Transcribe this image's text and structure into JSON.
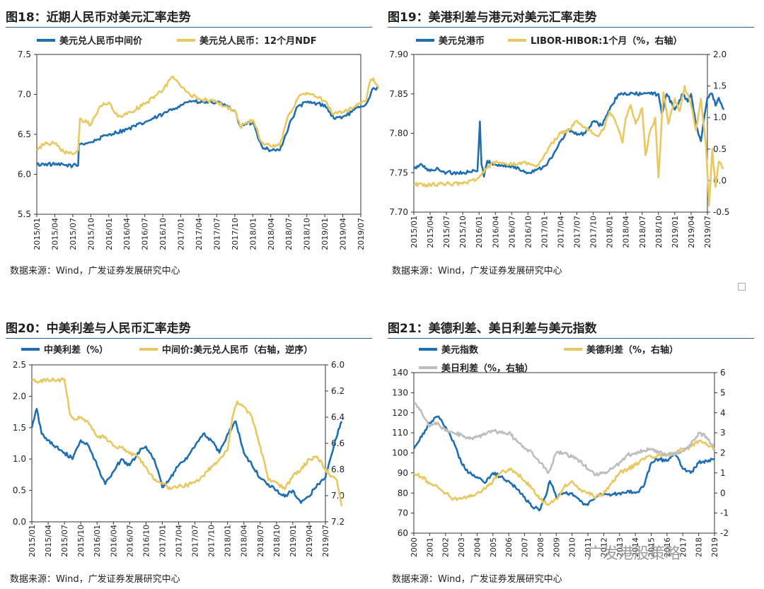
{
  "colors": {
    "blue": "#1f6fb0",
    "yellow": "#e8c860",
    "gray": "#bdbdbd",
    "rule": "#2a5f8f"
  },
  "watermark": "广发港股策略",
  "charts": [
    {
      "id": "fig18",
      "title": "图18：近期人民币对美元汇率走势",
      "source": "数据来源：Wind，广发证券发展研究中心",
      "chart_data": {
        "type": "line",
        "title": "图18：近期人民币对美元汇率走势",
        "x_ticks": [
          "2015/01",
          "2015/04",
          "2015/07",
          "2015/10",
          "2016/01",
          "2016/04",
          "2016/07",
          "2016/10",
          "2017/01",
          "2017/04",
          "2017/07",
          "2017/10",
          "2018/01",
          "2018/04",
          "2018/07",
          "2018/10",
          "2019/01",
          "2019/04",
          "2019/07"
        ],
        "ylim": [
          5.5,
          7.5
        ],
        "yticks": [
          "5.5",
          "6.0",
          "6.5",
          "7.0",
          "7.5"
        ],
        "series": [
          {
            "name": "美元兑人民币中间价",
            "color": "blue",
            "x": [
              0,
              0.5,
              1,
              2,
              2.3,
              2.34,
              3,
              4,
              5,
              6,
              7,
              8,
              8.5,
              9,
              10,
              10.5,
              11,
              11.3,
              12,
              12.5,
              13,
              13.5,
              14,
              14.5,
              15,
              16,
              16.5,
              17,
              17.5,
              18,
              18.3,
              18.7,
              19
            ],
            "values": [
              6.12,
              6.13,
              6.12,
              6.11,
              6.11,
              6.38,
              6.4,
              6.5,
              6.56,
              6.65,
              6.75,
              6.87,
              6.92,
              6.9,
              6.9,
              6.85,
              6.8,
              6.6,
              6.65,
              6.35,
              6.3,
              6.3,
              6.6,
              6.85,
              6.9,
              6.87,
              6.7,
              6.72,
              6.78,
              6.85,
              6.88,
              7.08,
              7.08
            ]
          },
          {
            "name": "美元兑人民币：12个月NDF",
            "color": "yellow",
            "x": [
              0,
              0.5,
              1,
              1.5,
              2,
              2.3,
              2.4,
              3,
              3.5,
              4,
              4.5,
              5,
              6,
              7,
              7.5,
              8,
              8.5,
              9,
              10,
              10.5,
              11,
              11.3,
              12,
              12.5,
              13,
              13.5,
              14,
              14.5,
              15,
              16,
              16.5,
              17,
              17.5,
              18,
              18.3,
              18.5,
              18.7,
              19
            ],
            "values": [
              6.3,
              6.4,
              6.38,
              6.28,
              6.25,
              6.3,
              6.7,
              6.62,
              6.85,
              6.9,
              6.72,
              6.75,
              6.88,
              7.05,
              7.22,
              7.1,
              7.0,
              6.95,
              6.9,
              6.85,
              6.8,
              6.6,
              6.68,
              6.4,
              6.35,
              6.36,
              6.75,
              6.95,
              7.02,
              6.92,
              6.75,
              6.78,
              6.82,
              6.9,
              6.92,
              7.15,
              7.2,
              7.08
            ]
          }
        ]
      }
    },
    {
      "id": "fig19",
      "title": "图19：美港利差与港元对美元汇率走势",
      "source": "数据来源：Wind，广发证券发展研究中心",
      "chart_data": {
        "type": "line",
        "title": "图19：美港利差与港元对美元汇率走势",
        "x_ticks": [
          "2015/01",
          "2015/04",
          "2015/07",
          "2015/10",
          "2016/01",
          "2016/04",
          "2016/07",
          "2016/10",
          "2017/01",
          "2017/04",
          "2017/07",
          "2017/10",
          "2018/01",
          "2018/04",
          "2018/07",
          "2018/10",
          "2019/01",
          "2019/04",
          "2019/07"
        ],
        "ylim": [
          7.7,
          7.9
        ],
        "yticks": [
          "7.70",
          "7.75",
          "7.80",
          "7.85",
          "7.90"
        ],
        "y2lim": [
          -0.5,
          2.0
        ],
        "y2ticks": [
          "-0.5",
          "0.0",
          "0.5",
          "1.0",
          "1.5",
          "2.0"
        ],
        "series": [
          {
            "name": "美元兑港币",
            "axis": "left",
            "color": "blue",
            "x": [
              0,
              0.5,
              1,
              1.5,
              2,
              3,
              3.9,
              4.05,
              4.15,
              4.3,
              4.5,
              5,
              6,
              7,
              8,
              8.5,
              9,
              9.5,
              10,
              10.5,
              11,
              11.5,
              12,
              12.5,
              13,
              14,
              14.5,
              15,
              15.2,
              15.5,
              16,
              16.5,
              16.8,
              17,
              17.3,
              17.6,
              17.8,
              18,
              18.3,
              18.5,
              18.7,
              19
            ],
            "values": [
              7.755,
              7.76,
              7.752,
              7.755,
              7.75,
              7.75,
              7.752,
              7.815,
              7.76,
              7.745,
              7.765,
              7.76,
              7.758,
              7.75,
              7.758,
              7.77,
              7.79,
              7.805,
              7.798,
              7.8,
              7.815,
              7.81,
              7.83,
              7.848,
              7.85,
              7.85,
              7.85,
              7.85,
              7.825,
              7.85,
              7.83,
              7.85,
              7.84,
              7.85,
              7.81,
              7.79,
              7.82,
              7.845,
              7.85,
              7.835,
              7.845,
              7.83
            ]
          },
          {
            "name": "LIBOR-HIBOR:1个月（%，右轴）",
            "axis": "right",
            "color": "yellow",
            "x": [
              0,
              1,
              2,
              3,
              3.5,
              4,
              4.5,
              5,
              6,
              7,
              7.5,
              8,
              8.5,
              9,
              9.5,
              10,
              10.5,
              11,
              11.3,
              11.6,
              12,
              12.5,
              12.8,
              13,
              13.3,
              13.6,
              14,
              14.2,
              14.5,
              14.8,
              15,
              15.3,
              15.6,
              16,
              16.3,
              16.6,
              17,
              17.3,
              17.6,
              17.9,
              18.1,
              18.3,
              18.5,
              18.7,
              19
            ],
            "values": [
              -0.06,
              -0.07,
              -0.05,
              -0.05,
              0.0,
              0.05,
              0.2,
              0.3,
              0.25,
              0.28,
              0.22,
              0.4,
              0.6,
              0.75,
              0.8,
              0.95,
              0.85,
              0.75,
              0.7,
              0.8,
              1.1,
              0.85,
              0.6,
              1.0,
              1.2,
              0.9,
              1.15,
              0.4,
              0.8,
              1.0,
              0.05,
              1.4,
              0.9,
              1.3,
              1.1,
              1.5,
              1.2,
              0.8,
              1.3,
              0.6,
              -0.4,
              0.5,
              -0.1,
              0.3,
              0.2
            ]
          }
        ]
      }
    },
    {
      "id": "fig20",
      "title": "图20：中美利差与人民币汇率走势",
      "source": "数据来源：Wind，广发证券发展研究中心",
      "chart_data": {
        "type": "line",
        "title": "图20：中美利差与人民币汇率走势",
        "x_ticks": [
          "2015/01",
          "2015/04",
          "2015/07",
          "2015/10",
          "2016/01",
          "2016/04",
          "2016/07",
          "2016/10",
          "2017/01",
          "2017/04",
          "2017/07",
          "2017/10",
          "2018/01",
          "2018/04",
          "2018/07",
          "2018/10",
          "2019/01",
          "2019/04",
          "2019/07"
        ],
        "ylim": [
          0.0,
          2.5
        ],
        "yticks": [
          "0.0",
          "0.5",
          "1.0",
          "1.5",
          "2.0",
          "2.5"
        ],
        "y2lim": [
          6.0,
          7.2
        ],
        "y2_inverted": true,
        "y2ticks": [
          "6.0",
          "6.2",
          "6.4",
          "6.6",
          "6.8",
          "7.0",
          "7.2"
        ],
        "series": [
          {
            "name": "中美利差（%）",
            "axis": "left",
            "color": "blue",
            "x": [
              0,
              0.3,
              0.6,
              1,
              1.5,
              2,
              2.5,
              3,
              3.5,
              4,
              4.5,
              5,
              5.5,
              6,
              6.5,
              7,
              7.5,
              8,
              8.5,
              9,
              9.5,
              10,
              10.5,
              11,
              11.5,
              12,
              12.5,
              13,
              13.5,
              14,
              14.5,
              15,
              15.5,
              16,
              16.5,
              17,
              17.5,
              18,
              18.3,
              18.6,
              19
            ],
            "values": [
              1.5,
              1.8,
              1.4,
              1.3,
              1.2,
              1.1,
              1.0,
              1.3,
              1.2,
              0.9,
              0.6,
              0.8,
              1.0,
              0.9,
              1.1,
              1.2,
              1.0,
              0.55,
              0.7,
              0.9,
              1.0,
              1.2,
              1.4,
              1.3,
              1.1,
              1.4,
              1.6,
              1.1,
              0.9,
              0.7,
              0.6,
              0.5,
              0.4,
              0.5,
              0.3,
              0.4,
              0.6,
              0.7,
              1.0,
              1.3,
              1.6
            ]
          },
          {
            "name": "中间价:美元兑人民币（右轴，逆序）",
            "axis": "right",
            "color": "yellow",
            "x": [
              0,
              0.5,
              1,
              1.5,
              2,
              2.34,
              2.6,
              3,
              3.5,
              4,
              4.5,
              5,
              5.5,
              6,
              6.5,
              7,
              7.5,
              8,
              8.5,
              9,
              9.5,
              10,
              10.5,
              11,
              11.5,
              12,
              12.3,
              12.6,
              13,
              13.5,
              14,
              14.5,
              15,
              15.5,
              16,
              16.5,
              17,
              17.5,
              18,
              18.4,
              18.7,
              19
            ],
            "values": [
              6.12,
              6.13,
              6.11,
              6.12,
              6.11,
              6.38,
              6.42,
              6.4,
              6.45,
              6.55,
              6.55,
              6.62,
              6.63,
              6.68,
              6.7,
              6.78,
              6.88,
              6.9,
              6.95,
              6.93,
              6.92,
              6.9,
              6.85,
              6.78,
              6.72,
              6.65,
              6.4,
              6.28,
              6.32,
              6.4,
              6.62,
              6.88,
              6.9,
              6.95,
              6.85,
              6.8,
              6.72,
              6.7,
              6.8,
              6.85,
              6.88,
              7.08
            ]
          }
        ]
      }
    },
    {
      "id": "fig21",
      "title": "图21：美德利差、美日利差与美元指数",
      "source": "数据来源：Wind，广发证券发展研究中心",
      "chart_data": {
        "type": "line",
        "title": "图21：美德利差、美日利差与美元指数",
        "x_ticks": [
          "2000",
          "2001",
          "2002",
          "2003",
          "2004",
          "2005",
          "2006",
          "2007",
          "2008",
          "2009",
          "2010",
          "2011",
          "2012",
          "2013",
          "2014",
          "2015",
          "2016",
          "2017",
          "2018",
          "2019"
        ],
        "ylim": [
          60,
          140
        ],
        "yticks": [
          "60",
          "70",
          "80",
          "90",
          "100",
          "110",
          "120",
          "130",
          "140"
        ],
        "y2lim": [
          -2,
          6
        ],
        "y2ticks": [
          "-2",
          "-1",
          "0",
          "1",
          "2",
          "3",
          "4",
          "5",
          "6"
        ],
        "series": [
          {
            "name": "美元指数",
            "axis": "left",
            "color": "blue",
            "x": [
              0,
              0.5,
              1,
              1.5,
              2,
              2.5,
              3,
              3.5,
              4,
              4.5,
              5,
              5.5,
              6,
              6.5,
              7,
              7.5,
              8,
              8.3,
              8.6,
              9,
              9.5,
              10,
              10.5,
              11,
              11.5,
              12,
              12.5,
              13,
              13.5,
              14,
              14.5,
              15,
              15.5,
              16,
              16.5,
              17,
              17.5,
              18,
              18.5,
              19
            ],
            "values": [
              102,
              108,
              115,
              118,
              113,
              106,
              95,
              90,
              88,
              85,
              90,
              88,
              86,
              82,
              78,
              73,
              72,
              78,
              86,
              78,
              80,
              80,
              76,
              74,
              78,
              80,
              79,
              80,
              81,
              80,
              83,
              95,
              97,
              96,
              100,
              92,
              90,
              95,
              96,
              97
            ]
          },
          {
            "name": "美德利差（%，右轴）",
            "axis": "right",
            "color": "yellow",
            "x": [
              0,
              0.5,
              1,
              1.5,
              2,
              2.5,
              3,
              3.5,
              4,
              4.5,
              5,
              5.5,
              6,
              6.5,
              7,
              7.5,
              8,
              8.5,
              9,
              9.5,
              10,
              10.5,
              11,
              11.5,
              12,
              12.5,
              13,
              13.5,
              14,
              14.5,
              15,
              15.5,
              16,
              16.5,
              17,
              17.5,
              18,
              18.5,
              19
            ],
            "values": [
              1.0,
              0.8,
              0.5,
              0.3,
              0.0,
              -0.3,
              -0.3,
              -0.2,
              0.0,
              0.2,
              0.6,
              1.0,
              1.2,
              1.0,
              0.6,
              0.2,
              -0.3,
              -0.6,
              -0.3,
              0.3,
              0.6,
              0.2,
              0.0,
              -0.2,
              0.0,
              0.5,
              1.0,
              1.2,
              1.4,
              1.7,
              1.8,
              1.9,
              1.9,
              2.0,
              2.2,
              2.3,
              2.6,
              2.4,
              2.2
            ]
          },
          {
            "name": "美日利差（%，右轴）",
            "axis": "right",
            "color": "gray",
            "x": [
              0,
              0.5,
              1,
              1.5,
              2,
              2.5,
              3,
              3.5,
              4,
              4.5,
              5,
              5.5,
              6,
              6.5,
              7,
              7.5,
              8,
              8.5,
              9,
              9.5,
              10,
              10.5,
              11,
              11.5,
              12,
              12.5,
              13,
              13.5,
              14,
              14.5,
              15,
              15.5,
              16,
              16.5,
              17,
              17.5,
              18,
              18.5,
              19
            ],
            "values": [
              4.5,
              4.0,
              3.3,
              3.5,
              3.1,
              3.0,
              2.9,
              2.7,
              2.8,
              2.9,
              3.1,
              3.0,
              3.0,
              2.6,
              2.2,
              2.0,
              1.5,
              1.0,
              2.0,
              2.0,
              1.8,
              1.6,
              1.2,
              0.9,
              1.0,
              1.2,
              1.5,
              1.9,
              2.0,
              2.1,
              2.2,
              2.0,
              1.9,
              2.0,
              2.1,
              2.4,
              3.0,
              2.8,
              2.2
            ]
          }
        ]
      }
    }
  ]
}
